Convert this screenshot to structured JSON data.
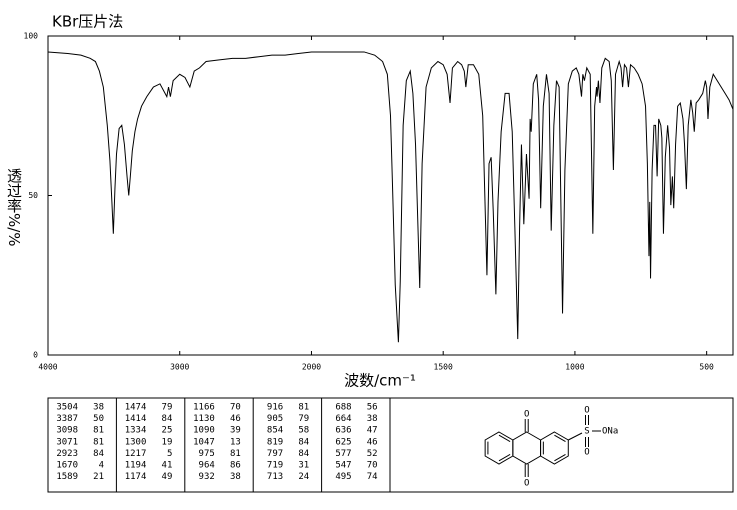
{
  "chart_data": {
    "type": "line",
    "title": "KBr压片法",
    "xlabel": "波数/cm⁻¹",
    "ylabel": "透过率%/%",
    "color": "#000000",
    "xlim": [
      4000,
      400
    ],
    "xticks": [
      4000,
      3000,
      2000,
      1500,
      1000,
      500
    ],
    "ylim": [
      0,
      100
    ],
    "yticks": [
      0,
      50,
      100
    ],
    "x": [
      4000,
      3850,
      3750,
      3680,
      3640,
      3610,
      3580,
      3550,
      3530,
      3515,
      3504,
      3492,
      3480,
      3460,
      3440,
      3420,
      3400,
      3387,
      3375,
      3360,
      3340,
      3320,
      3290,
      3250,
      3200,
      3150,
      3098,
      3085,
      3071,
      3050,
      3000,
      2960,
      2923,
      2890,
      2850,
      2800,
      2700,
      2600,
      2500,
      2400,
      2300,
      2200,
      2100,
      2000,
      1900,
      1800,
      1760,
      1730,
      1712,
      1700,
      1693,
      1682,
      1670,
      1663,
      1652,
      1640,
      1625,
      1615,
      1605,
      1589,
      1580,
      1565,
      1545,
      1520,
      1500,
      1485,
      1474,
      1465,
      1445,
      1430,
      1420,
      1414,
      1405,
      1385,
      1365,
      1350,
      1342,
      1334,
      1326,
      1318,
      1310,
      1300,
      1292,
      1280,
      1265,
      1250,
      1238,
      1228,
      1217,
      1210,
      1203,
      1194,
      1184,
      1174,
      1170,
      1166,
      1158,
      1145,
      1138,
      1130,
      1120,
      1108,
      1098,
      1090,
      1080,
      1070,
      1060,
      1047,
      1038,
      1025,
      1010,
      995,
      985,
      975,
      970,
      964,
      955,
      942,
      932,
      925,
      918,
      916,
      911,
      905,
      898,
      885,
      870,
      862,
      854,
      846,
      832,
      825,
      819,
      812,
      804,
      797,
      789,
      775,
      760,
      745,
      732,
      725,
      719,
      716,
      713,
      707,
      700,
      694,
      688,
      682,
      674,
      670,
      664,
      657,
      648,
      641,
      636,
      630,
      625,
      618,
      610,
      600,
      590,
      584,
      577,
      570,
      560,
      553,
      547,
      540,
      530,
      515,
      505,
      500,
      495,
      488,
      475,
      460,
      445,
      430,
      415,
      400
    ],
    "values": [
      95,
      94.5,
      94,
      93,
      92,
      89,
      84,
      72,
      61,
      48,
      38,
      52,
      63,
      71,
      72,
      66,
      56,
      50,
      56,
      64,
      70,
      74,
      78,
      81,
      84,
      85,
      81,
      84,
      81,
      86,
      88,
      87,
      84,
      89,
      90,
      92,
      92.5,
      93,
      93,
      93.5,
      94,
      94,
      94.5,
      95,
      95,
      95,
      94,
      92,
      88,
      75,
      55,
      22,
      4,
      23,
      72,
      86,
      89,
      82,
      66,
      21,
      60,
      84,
      90,
      92,
      91,
      88,
      79,
      90,
      92,
      91,
      89,
      84,
      91,
      91,
      88,
      75,
      50,
      25,
      60,
      62,
      45,
      19,
      48,
      70,
      82,
      82,
      70,
      40,
      5,
      40,
      66,
      41,
      63,
      49,
      74,
      70,
      85,
      88,
      80,
      46,
      78,
      88,
      82,
      39,
      72,
      86,
      84,
      13,
      58,
      85,
      89,
      90,
      88,
      81,
      88,
      86,
      90,
      88,
      38,
      78,
      84,
      81,
      86,
      79,
      90,
      93,
      92,
      86,
      58,
      88,
      92,
      90,
      84,
      91,
      90,
      84,
      91,
      90,
      88,
      85,
      78,
      60,
      31,
      48,
      24,
      58,
      72,
      72,
      56,
      74,
      72,
      68,
      38,
      62,
      72,
      65,
      47,
      56,
      46,
      66,
      78,
      79,
      74,
      66,
      52,
      72,
      80,
      76,
      70,
      79,
      80,
      82,
      86,
      84,
      74,
      84,
      88,
      86,
      84,
      82,
      80,
      77
    ]
  },
  "peak_table": [
    [
      [
        3504,
        38
      ],
      [
        3387,
        50
      ],
      [
        3098,
        81
      ],
      [
        3071,
        81
      ],
      [
        2923,
        84
      ],
      [
        1670,
        4
      ],
      [
        1589,
        21
      ]
    ],
    [
      [
        1474,
        79
      ],
      [
        1414,
        84
      ],
      [
        1334,
        25
      ],
      [
        1300,
        19
      ],
      [
        1217,
        5
      ],
      [
        1194,
        41
      ],
      [
        1174,
        49
      ]
    ],
    [
      [
        1166,
        70
      ],
      [
        1130,
        46
      ],
      [
        1090,
        39
      ],
      [
        1047,
        13
      ],
      [
        975,
        81
      ],
      [
        964,
        86
      ],
      [
        932,
        38
      ]
    ],
    [
      [
        916,
        81
      ],
      [
        905,
        79
      ],
      [
        854,
        58
      ],
      [
        819,
        84
      ],
      [
        797,
        84
      ],
      [
        719,
        31
      ],
      [
        713,
        24
      ]
    ],
    [
      [
        688,
        56
      ],
      [
        664,
        38
      ],
      [
        636,
        47
      ],
      [
        625,
        46
      ],
      [
        577,
        52
      ],
      [
        547,
        70
      ],
      [
        495,
        74
      ]
    ]
  ],
  "structure": {
    "labels": [
      "O",
      "O",
      "O",
      "S",
      "O",
      "ONa"
    ]
  }
}
